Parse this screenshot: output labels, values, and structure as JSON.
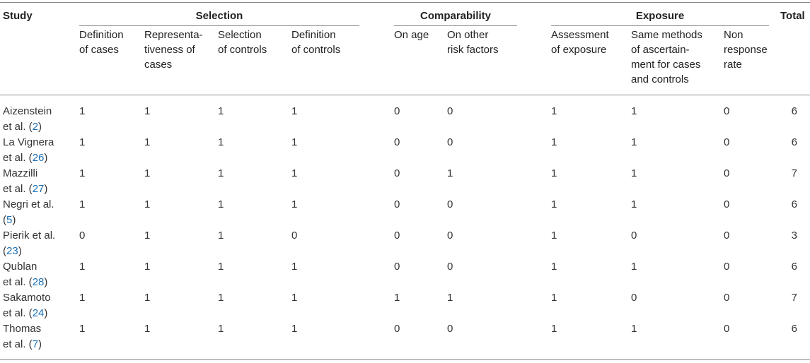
{
  "header": {
    "study": "Study",
    "total": "Total",
    "groups": {
      "selection": "Selection",
      "comparability": "Comparability",
      "exposure": "Exposure"
    },
    "sub": {
      "def_cases": [
        "Definition",
        "of cases"
      ],
      "rep_cases": [
        "Representa-",
        "tiveness of",
        "cases"
      ],
      "sel_controls": [
        "Selection",
        "of controls"
      ],
      "def_controls": [
        "Definition",
        "of controls"
      ],
      "on_age": [
        "On age"
      ],
      "other_risk": [
        "On other",
        "risk factors"
      ],
      "assessment": [
        "Assessment",
        "of exposure"
      ],
      "same_methods": [
        "Same methods",
        "of ascertain-",
        "ment for cases",
        "and controls"
      ],
      "non_response": [
        "Non",
        "response",
        "rate"
      ]
    }
  },
  "rows": [
    {
      "study1": "Aizenstein",
      "study2_pre": "et al. (",
      "ref": "2",
      "study2_post": ")",
      "vals": [
        "1",
        "1",
        "1",
        "1",
        "0",
        "0",
        "1",
        "1",
        "0"
      ],
      "total": "6"
    },
    {
      "study1": "La Vignera",
      "study2_pre": "et al. (",
      "ref": "26",
      "study2_post": ")",
      "vals": [
        "1",
        "1",
        "1",
        "1",
        "0",
        "0",
        "1",
        "1",
        "0"
      ],
      "total": "6"
    },
    {
      "study1": "Mazzilli",
      "study2_pre": "et al. (",
      "ref": "27",
      "study2_post": ")",
      "vals": [
        "1",
        "1",
        "1",
        "1",
        "0",
        "1",
        "1",
        "1",
        "0"
      ],
      "total": "7"
    },
    {
      "study1": "Negri et al.",
      "study2_pre": "(",
      "ref": "5",
      "study2_post": ")",
      "vals": [
        "1",
        "1",
        "1",
        "1",
        "0",
        "0",
        "1",
        "1",
        "0"
      ],
      "total": "6"
    },
    {
      "study1": "Pierik et al.",
      "study2_pre": "(",
      "ref": "23",
      "study2_post": ")",
      "vals": [
        "0",
        "1",
        "1",
        "0",
        "0",
        "0",
        "1",
        "0",
        "0"
      ],
      "total": "3"
    },
    {
      "study1": "Qublan",
      "study2_pre": "et al. (",
      "ref": "28",
      "study2_post": ")",
      "vals": [
        "1",
        "1",
        "1",
        "1",
        "0",
        "0",
        "1",
        "1",
        "0"
      ],
      "total": "6"
    },
    {
      "study1": "Sakamoto",
      "study2_pre": "et al. (",
      "ref": "24",
      "study2_post": ")",
      "vals": [
        "1",
        "1",
        "1",
        "1",
        "1",
        "1",
        "1",
        "0",
        "0"
      ],
      "total": "7"
    },
    {
      "study1": "Thomas",
      "study2_pre": "et al. (",
      "ref": "7",
      "study2_post": ")",
      "vals": [
        "1",
        "1",
        "1",
        "1",
        "0",
        "0",
        "1",
        "1",
        "0"
      ],
      "total": "6"
    }
  ]
}
